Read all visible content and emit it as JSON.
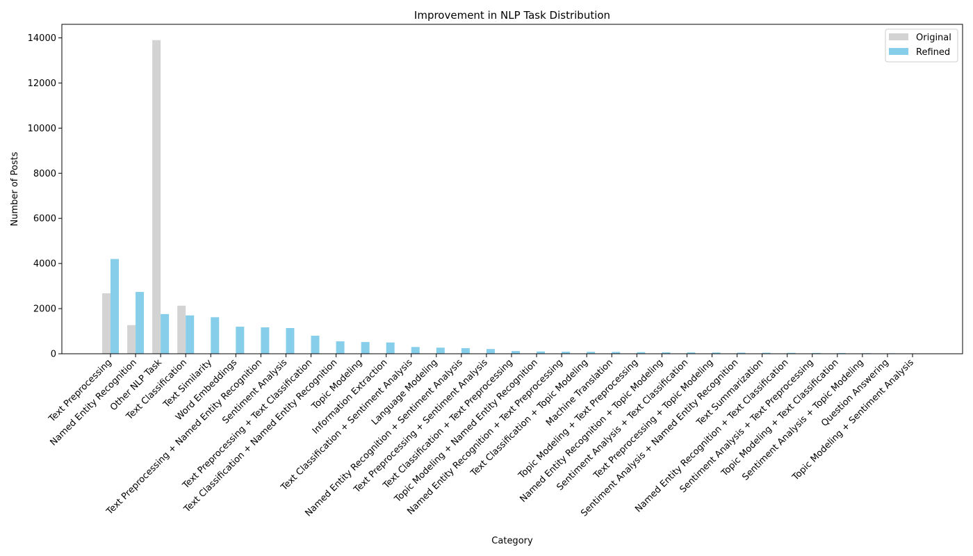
{
  "chart_data": {
    "type": "bar",
    "title": "Improvement in NLP Task Distribution",
    "xlabel": "Category",
    "ylabel": "Number of Posts",
    "ylim": [
      0,
      14600
    ],
    "yticks": [
      0,
      2000,
      4000,
      6000,
      8000,
      10000,
      12000,
      14000
    ],
    "grid": false,
    "legend_position": "top-right",
    "categories": [
      "Text Preprocessing",
      "Named Entity Recognition",
      "Other NLP Task",
      "Text Classification",
      "Text Similarity",
      "Word Embeddings",
      "Text Preprocessing + Named Entity Recognition",
      "Sentiment Analysis",
      "Text Preprocessing + Text Classification",
      "Text Classification + Named Entity Recognition",
      "Topic Modeling",
      "Information Extraction",
      "Text Classification + Sentiment Analysis",
      "Language Modeling",
      "Named Entity Recognition + Sentiment Analysis",
      "Text Preprocessing + Sentiment Analysis",
      "Text Classification + Text Preprocessing",
      "Topic Modeling + Named Entity Recognition",
      "Named Entity Recognition + Text Preprocessing",
      "Text Classification + Topic Modeling",
      "Machine Translation",
      "Topic Modeling + Text Preprocessing",
      "Named Entity Recognition + Topic Modeling",
      "Sentiment Analysis + Text Classification",
      "Text Preprocessing + Topic Modeling",
      "Sentiment Analysis + Named Entity Recognition",
      "Text Summarization",
      "Named Entity Recognition + Text Classification",
      "Sentiment Analysis + Text Preprocessing",
      "Topic Modeling + Text Classification",
      "Sentiment Analysis + Topic Modeling",
      "Question Answering",
      "Topic Modeling + Sentiment Analysis"
    ],
    "series": [
      {
        "name": "Original",
        "color": "#d3d3d3",
        "values": [
          2680,
          1270,
          13900,
          2130,
          0,
          0,
          0,
          0,
          0,
          0,
          0,
          0,
          0,
          0,
          0,
          0,
          0,
          0,
          0,
          0,
          0,
          0,
          0,
          0,
          0,
          0,
          0,
          0,
          0,
          0,
          0,
          0,
          0
        ]
      },
      {
        "name": "Refined",
        "color": "#87ceeb",
        "values": [
          4200,
          2740,
          1760,
          1700,
          1620,
          1200,
          1170,
          1140,
          800,
          550,
          520,
          500,
          300,
          270,
          250,
          210,
          120,
          100,
          90,
          85,
          80,
          70,
          65,
          60,
          55,
          50,
          45,
          40,
          35,
          30,
          25,
          20,
          15
        ]
      }
    ]
  }
}
